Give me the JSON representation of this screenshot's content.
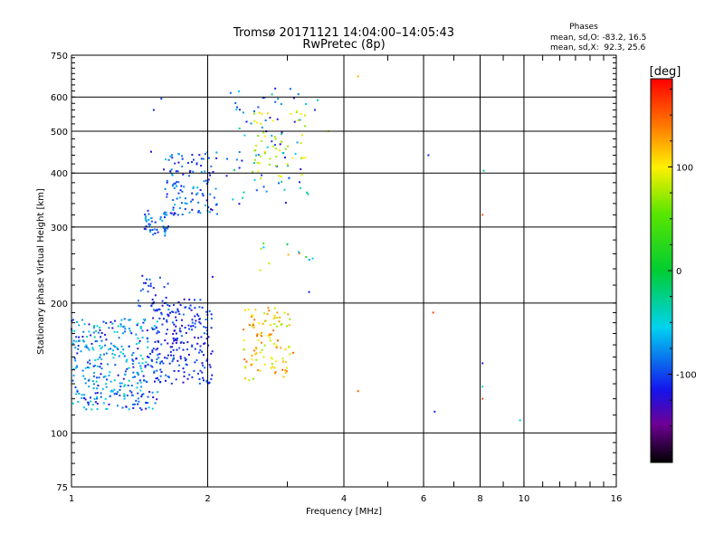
{
  "chart_data": {
    "type": "scatter",
    "title": "Tromsø 20171121 14:04:00–14:05:43",
    "subtitle": "RwPretec (8p)",
    "xlabel": "Frequency [MHz]",
    "ylabel": "Stationary phase Virtual Height [km]",
    "x_scale": "log",
    "y_scale": "log",
    "xlim": [
      1,
      16
    ],
    "ylim": [
      75,
      750
    ],
    "x_ticks": [
      1,
      2,
      4,
      6,
      8,
      10,
      16
    ],
    "y_ticks": [
      75,
      100,
      200,
      300,
      400,
      500,
      600,
      750
    ],
    "grid": true,
    "phase_stats": {
      "heading": "Phases",
      "line_o": "mean, sd,O: -83.2, 16.5",
      "line_x": "mean, sd,X:  92.3, 25.6"
    },
    "colorbar": {
      "label": "[deg]",
      "tick_labels": [
        "100",
        "0",
        "-100"
      ],
      "ticks": [
        100,
        0,
        -100
      ],
      "range": [
        -185,
        185
      ]
    },
    "point_groups": [
      {
        "x_range": [
          1.0,
          1.55
        ],
        "y_range": [
          113,
          185
        ],
        "phase_range": [
          -125,
          -35
        ],
        "count": 340
      },
      {
        "x_range": [
          1.5,
          2.05
        ],
        "y_range": [
          130,
          205
        ],
        "phase_range": [
          -130,
          -80
        ],
        "count": 230
      },
      {
        "x_range": [
          1.4,
          1.65
        ],
        "y_range": [
          195,
          235
        ],
        "phase_range": [
          -120,
          -80
        ],
        "count": 25
      },
      {
        "x_range": [
          1.45,
          1.65
        ],
        "y_range": [
          285,
          330
        ],
        "phase_range": [
          -120,
          -60
        ],
        "count": 45
      },
      {
        "x_range": [
          1.6,
          2.1
        ],
        "y_range": [
          320,
          450
        ],
        "phase_range": [
          -125,
          -60
        ],
        "count": 120
      },
      {
        "x_range": [
          2.2,
          3.4
        ],
        "y_range": [
          330,
          640
        ],
        "phase_range": [
          -130,
          -20
        ],
        "count": 75
      },
      {
        "x_range": [
          2.5,
          3.3
        ],
        "y_range": [
          385,
          560
        ],
        "phase_range": [
          60,
          110
        ],
        "count": 55
      },
      {
        "x_range": [
          2.4,
          3.1
        ],
        "y_range": [
          132,
          195
        ],
        "phase_range": [
          70,
          150
        ],
        "count": 110
      },
      {
        "x_range": [
          2.6,
          3.5
        ],
        "y_range": [
          225,
          275
        ],
        "phase_range": [
          -110,
          160
        ],
        "count": 12
      }
    ],
    "points": [
      {
        "x": 1.58,
        "y": 595,
        "phase": -100
      },
      {
        "x": 1.52,
        "y": 560,
        "phase": -110
      },
      {
        "x": 1.5,
        "y": 448,
        "phase": -115
      },
      {
        "x": 2.82,
        "y": 628,
        "phase": -110
      },
      {
        "x": 4.3,
        "y": 670,
        "phase": 120
      },
      {
        "x": 6.15,
        "y": 440,
        "phase": -110
      },
      {
        "x": 8.15,
        "y": 405,
        "phase": -20
      },
      {
        "x": 8.1,
        "y": 320,
        "phase": 150
      },
      {
        "x": 6.3,
        "y": 190,
        "phase": 160
      },
      {
        "x": 6.35,
        "y": 112,
        "phase": -110
      },
      {
        "x": 8.1,
        "y": 145,
        "phase": -120
      },
      {
        "x": 8.1,
        "y": 128,
        "phase": -40
      },
      {
        "x": 8.1,
        "y": 120,
        "phase": 160
      },
      {
        "x": 9.8,
        "y": 107,
        "phase": -40
      },
      {
        "x": 4.3,
        "y": 125,
        "phase": 150
      },
      {
        "x": 3.35,
        "y": 212,
        "phase": -110
      },
      {
        "x": 3.5,
        "y": 590,
        "phase": -30
      },
      {
        "x": 3.45,
        "y": 560,
        "phase": -110
      },
      {
        "x": 3.7,
        "y": 500,
        "phase": 90
      },
      {
        "x": 2.05,
        "y": 230,
        "phase": -120
      }
    ]
  }
}
